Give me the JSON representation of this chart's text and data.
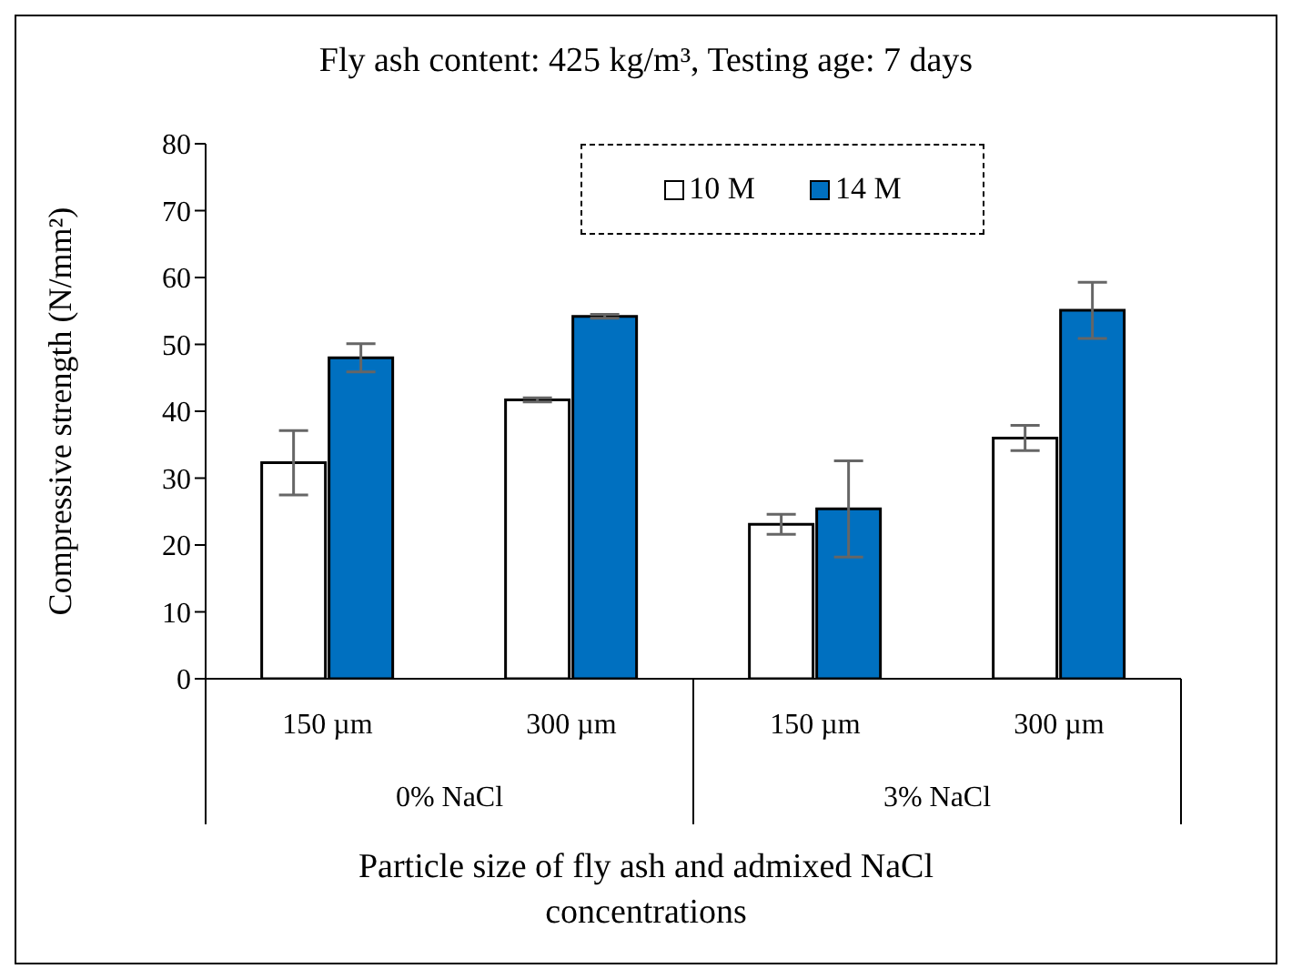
{
  "chart_data": {
    "type": "bar",
    "title": "Fly ash content: 425 kg/m³, Testing age: 7 days",
    "xlabel": "Particle size of fly ash and admixed NaCl concentrations",
    "ylabel": "Compressive strength (N/mm²)",
    "categories": [
      "150 µm",
      "300 µm",
      "150 µm",
      "300 µm"
    ],
    "annotations": [
      "0% NaCl",
      "3% NaCl"
    ],
    "series": [
      {
        "name": "10 M",
        "color": "#ffffff",
        "values": [
          32.3,
          41.7,
          23.1,
          36.0
        ],
        "errors": [
          4.8,
          0.3,
          1.5,
          1.9
        ]
      },
      {
        "name": "14  M",
        "color": "#0070c0",
        "values": [
          48.0,
          54.2,
          25.4,
          55.1
        ],
        "errors": [
          2.1,
          0.3,
          7.2,
          4.2
        ]
      }
    ],
    "ylim": [
      0,
      80
    ],
    "yticks": [
      0,
      10,
      20,
      30,
      40,
      50,
      60,
      70,
      80
    ],
    "legend": "top right"
  }
}
